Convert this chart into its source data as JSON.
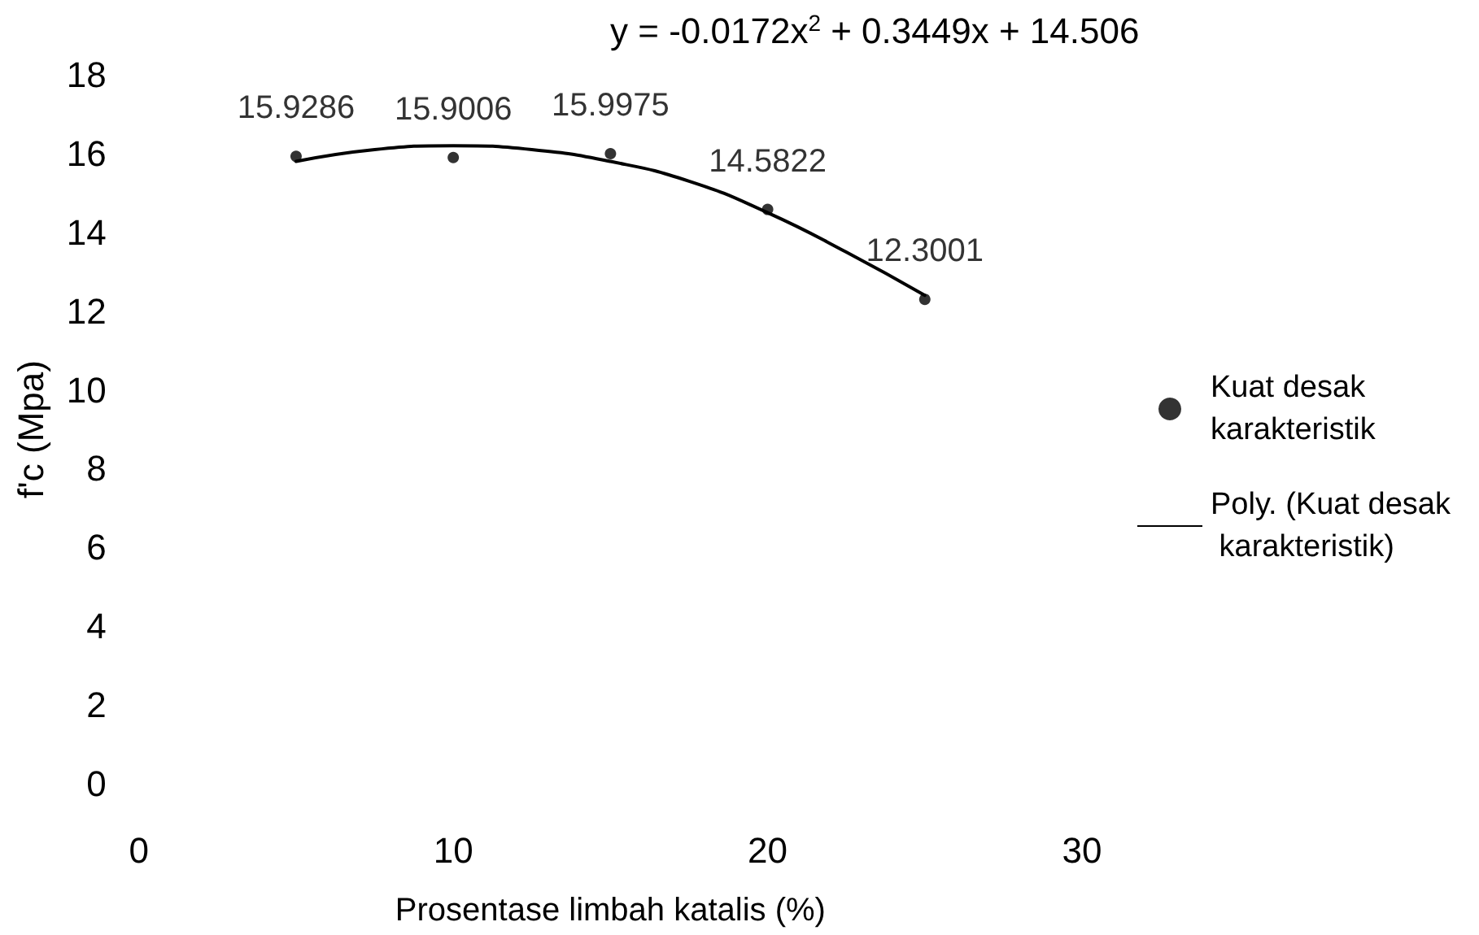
{
  "chart_data": {
    "type": "scatter",
    "xlabel": "Prosentase limbah katalis (%)",
    "ylabel": "f'c (Mpa)",
    "annotations": [
      "y = -0.0172x$^{2}$ + 0.3449x + 14.506"
    ],
    "x": [
      5,
      10,
      15,
      20,
      25
    ],
    "series": [
      {
        "name": "Kuat desak karakteristik",
        "color": "#000000",
        "values": [
          15.9286,
          15.9006,
          15.9975,
          14.5822,
          12.3001
        ],
        "data_labels": true,
        "marker": "circle"
      },
      {
        "name": "Poly. (Kuat desak karakteristik)",
        "type": "line",
        "color": "#000000",
        "x": [
          5,
          7.5,
          10,
          12.5,
          15,
          17.5,
          20,
          22.5,
          25
        ],
        "values": [
          15.8,
          16.1,
          16.2,
          16.1,
          15.8,
          15.3,
          14.5,
          13.5,
          12.4
        ],
        "marker": "none",
        "line_style": "solid"
      }
    ],
    "xlim": [
      0,
      30
    ],
    "xticks": [
      0,
      10,
      20,
      30
    ],
    "ylim": [
      0,
      18
    ],
    "yticks": [
      0,
      2,
      4,
      6,
      8,
      10,
      12,
      14,
      16,
      18
    ],
    "grid": false,
    "legend": "right"
  }
}
